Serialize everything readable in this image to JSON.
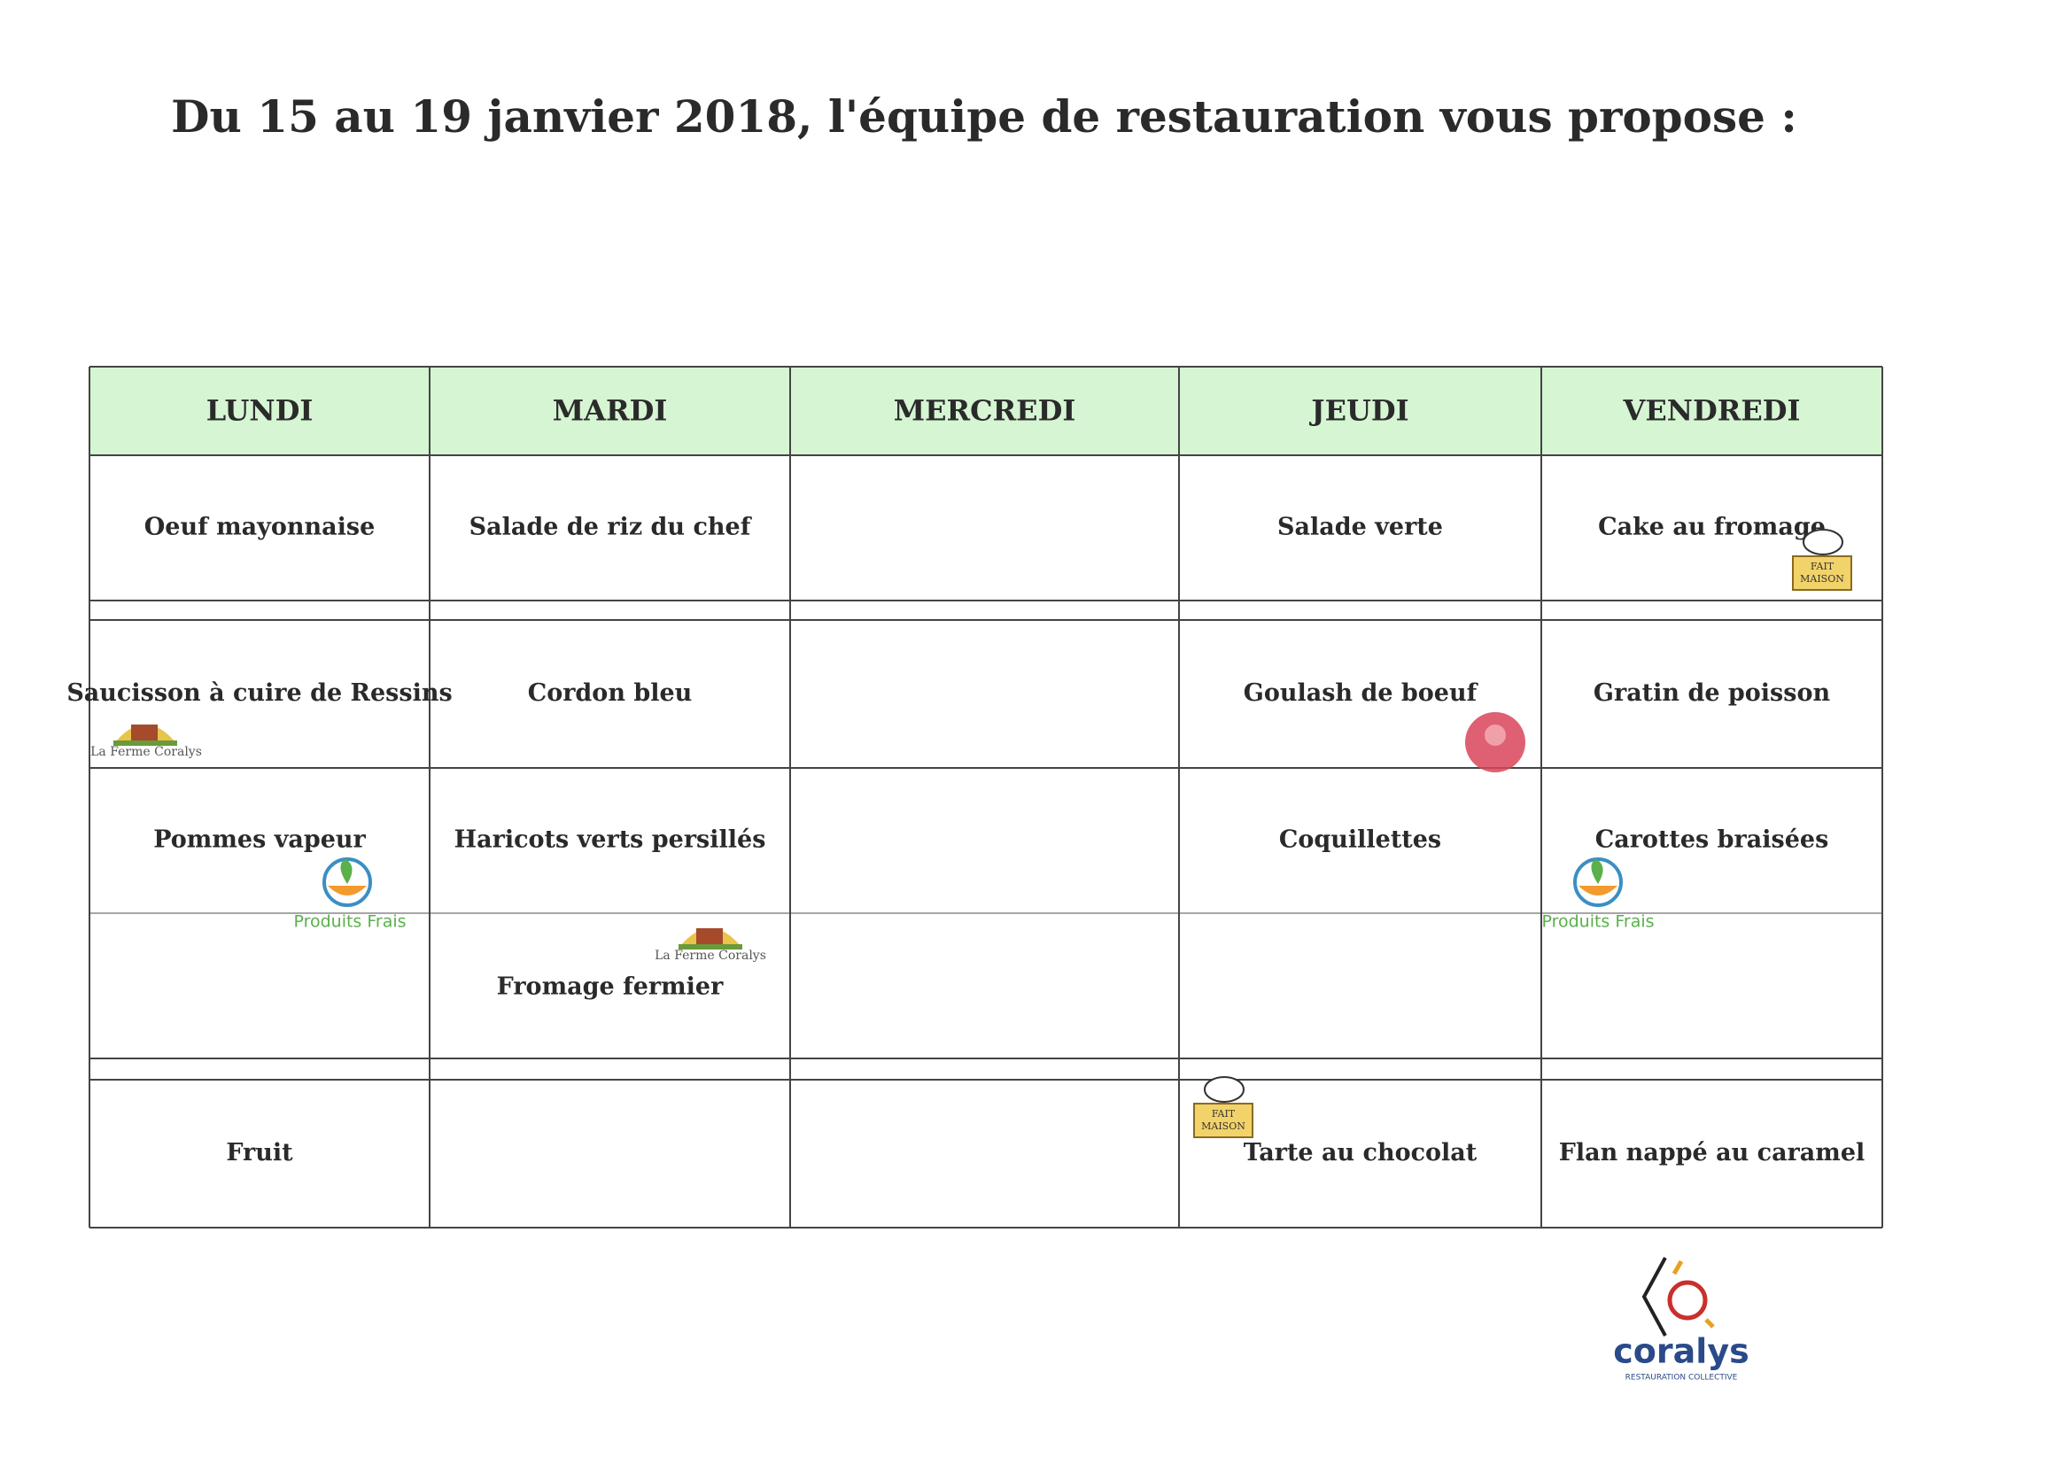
{
  "title": "Du 15 au 19 janvier 2018, l'équipe de restauration vous propose :",
  "table": {
    "headers": [
      "LUNDI",
      "MARDI",
      "MERCREDI",
      "JEUDI",
      "VENDREDI"
    ],
    "rows": [
      [
        "Oeuf mayonnaise",
        "Salade de riz du chef",
        null,
        "Salade verte",
        "Cake au fromage"
      ],
      [
        "Saucisson à cuire de Ressins",
        "Cordon bleu",
        null,
        "Goulash de boeuf",
        "Gratin de poisson"
      ],
      [
        "Pommes vapeur",
        "Haricots verts persillés",
        null,
        "Coquillettes",
        "Carottes braisées"
      ],
      [
        null,
        "Fromage fermier",
        null,
        null,
        null
      ],
      [
        "Fruit",
        null,
        null,
        "Tarte au chocolat",
        "Flan nappé au caramel"
      ]
    ]
  },
  "badges": {
    "ferme": "La Ferme Coralys",
    "frais": "Produits Frais",
    "maison_top": "FAIT",
    "maison_bottom": "MAISON"
  },
  "logo": {
    "name": "coralys",
    "tagline": "RESTAURATION COLLECTIVE"
  }
}
